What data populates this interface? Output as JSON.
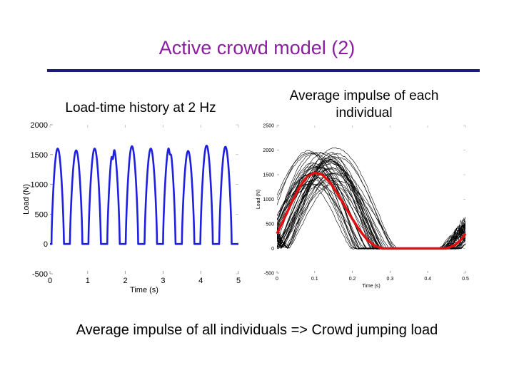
{
  "slide": {
    "title": "Active crowd model (2)",
    "caption_left": "Load-time history at 2 Hz",
    "caption_right": "Average impulse of each individual",
    "caption_bottom": "Average impulse of all individuals => Crowd jumping load",
    "colors": {
      "title": "#8b1ea0",
      "rule": "#1a1a80",
      "series_blue": "#1f1fe0",
      "series_red": "#e01010"
    }
  },
  "chart_data": [
    {
      "type": "line",
      "xlabel": "Time (s)",
      "ylabel": "Load (N)",
      "xlim": [
        0,
        5
      ],
      "ylim": [
        -500,
        2000
      ],
      "xticks": [
        0,
        1,
        2,
        3,
        4,
        5
      ],
      "yticks": [
        -500,
        0,
        500,
        1000,
        1500,
        2000
      ],
      "series": [
        {
          "color": "#1f1fe0",
          "pulse_starts": [
            0.04,
            0.53,
            1.02,
            1.52,
            2.01,
            2.51,
            3.0,
            3.5,
            3.99,
            4.49
          ],
          "pulse_peaks": [
            1600,
            1570,
            1600,
            1620,
            1640,
            1600,
            1640,
            1560,
            1650,
            1630
          ],
          "pulse_duration": 0.33
        }
      ]
    },
    {
      "type": "line",
      "xlabel": "Time (s)",
      "ylabel": "Load (N)",
      "xlim": [
        0,
        0.5
      ],
      "ylim": [
        -500,
        2500
      ],
      "xticks": [
        0,
        0.1,
        0.2,
        0.3,
        0.4,
        0.5
      ],
      "yticks": [
        -500,
        0,
        500,
        1000,
        1500,
        2000,
        2500
      ],
      "individual_count": 45,
      "series": [
        {
          "color": "#e01010",
          "x": [
            0,
            0.02,
            0.04,
            0.06,
            0.08,
            0.1,
            0.12,
            0.14,
            0.16,
            0.18,
            0.2,
            0.22,
            0.24,
            0.26,
            0.28,
            0.3,
            0.32,
            0.35,
            0.4,
            0.45,
            0.47,
            0.49,
            0.5
          ],
          "y": [
            300,
            620,
            950,
            1250,
            1460,
            1540,
            1500,
            1350,
            1120,
            860,
            600,
            360,
            170,
            50,
            0,
            0,
            0,
            0,
            0,
            0,
            60,
            190,
            300
          ]
        }
      ]
    }
  ]
}
